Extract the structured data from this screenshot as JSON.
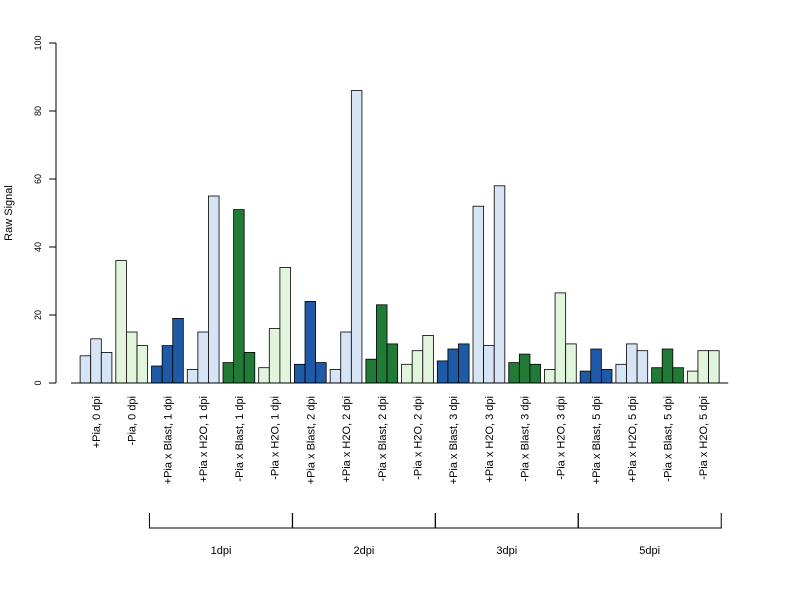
{
  "chart_data": {
    "type": "bar",
    "ylabel": "Raw Signal",
    "ylim": [
      0,
      100
    ],
    "yticks": [
      "0",
      "20",
      "40",
      "60",
      "80",
      "100"
    ],
    "grid": false,
    "colors": {
      "dark_blue": "#1f5aa6",
      "light_blue": "#d6e4f5",
      "dark_green": "#217a36",
      "light_green": "#e1f4dc",
      "bar_stroke": "#000000"
    },
    "categories": [
      "+Pia, 0 dpi",
      "-Pia, 0 dpi",
      "+Pia x Blast, 1 dpi",
      "+Pia x H2O, 1 dpi",
      "-Pia x Blast, 1 dpi",
      "-Pia x H2O, 1 dpi",
      "+Pia x Blast, 2 dpi",
      "+Pia x H2O, 2 dpi",
      "-Pia x Blast, 2 dpi",
      "-Pia x H2O, 2 dpi",
      "+Pia x Blast, 3 dpi",
      "+Pia x H2O, 3 dpi",
      "-Pia x Blast, 3 dpi",
      "-Pia x H2O, 3 dpi",
      "+Pia x Blast, 5 dpi",
      "+Pia x H2O, 5 dpi",
      "-Pia x Blast, 5 dpi",
      "-Pia x H2O, 5 dpi"
    ],
    "group_fill": [
      "light_blue",
      "light_green",
      "dark_blue",
      "light_blue",
      "dark_green",
      "light_green",
      "dark_blue",
      "light_blue",
      "dark_green",
      "light_green",
      "dark_blue",
      "light_blue",
      "dark_green",
      "light_green",
      "dark_blue",
      "light_blue",
      "dark_green",
      "light_green"
    ],
    "values": [
      [
        8,
        13,
        9
      ],
      [
        36,
        15,
        11
      ],
      [
        5,
        11,
        19
      ],
      [
        4,
        15,
        55
      ],
      [
        6,
        51,
        9
      ],
      [
        4.5,
        16,
        34
      ],
      [
        5.5,
        24,
        6
      ],
      [
        4,
        15,
        86
      ],
      [
        7,
        23,
        11.5
      ],
      [
        5.5,
        9.5,
        14
      ],
      [
        6.5,
        10,
        11.5
      ],
      [
        52,
        11,
        58
      ],
      [
        6,
        8.5,
        5.5
      ],
      [
        4,
        26.5,
        11.5
      ],
      [
        3.5,
        10,
        4
      ],
      [
        5.5,
        11.5,
        9.5
      ],
      [
        4.5,
        10,
        4.5
      ],
      [
        3.5,
        9.5,
        9.5
      ]
    ],
    "brackets": [
      {
        "label": "1dpi",
        "from": 2,
        "to": 5
      },
      {
        "label": "2dpi",
        "from": 6,
        "to": 9
      },
      {
        "label": "3dpi",
        "from": 10,
        "to": 13
      },
      {
        "label": "5dpi",
        "from": 14,
        "to": 17
      }
    ]
  }
}
